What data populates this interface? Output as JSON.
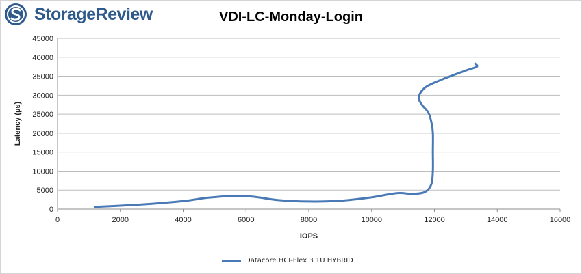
{
  "logo": {
    "text": "StorageReview"
  },
  "chart_data": {
    "type": "line",
    "title": "VDI-LC-Monday-Login",
    "xlabel": "IOPS",
    "ylabel": "Latency (µs)",
    "xlim": [
      0,
      16000
    ],
    "ylim": [
      0,
      45000
    ],
    "xticks": [
      0,
      2000,
      4000,
      6000,
      8000,
      10000,
      12000,
      14000,
      16000
    ],
    "yticks": [
      0,
      5000,
      10000,
      15000,
      20000,
      25000,
      30000,
      35000,
      40000,
      45000
    ],
    "grid": true,
    "legend_position": "bottom",
    "series": [
      {
        "name": "Datacore HCI-Flex 3 1U HYBRID",
        "color": "#4a7ab5",
        "points": [
          [
            1200,
            600
          ],
          [
            2000,
            900
          ],
          [
            3000,
            1400
          ],
          [
            4000,
            2100
          ],
          [
            4800,
            3000
          ],
          [
            5700,
            3500
          ],
          [
            6300,
            3200
          ],
          [
            7000,
            2400
          ],
          [
            8000,
            2000
          ],
          [
            9000,
            2200
          ],
          [
            10000,
            3100
          ],
          [
            10800,
            4200
          ],
          [
            11300,
            4000
          ],
          [
            11700,
            4500
          ],
          [
            11900,
            6500
          ],
          [
            11950,
            10000
          ],
          [
            11950,
            15000
          ],
          [
            11950,
            20000
          ],
          [
            11900,
            23000
          ],
          [
            11800,
            25500
          ],
          [
            11600,
            27500
          ],
          [
            11500,
            29500
          ],
          [
            11700,
            32000
          ],
          [
            12200,
            34000
          ],
          [
            13000,
            36500
          ],
          [
            13350,
            37500
          ],
          [
            13300,
            38300
          ]
        ]
      }
    ]
  },
  "legend": {
    "label": "Datacore HCI-Flex 3 1U HYBRID"
  }
}
